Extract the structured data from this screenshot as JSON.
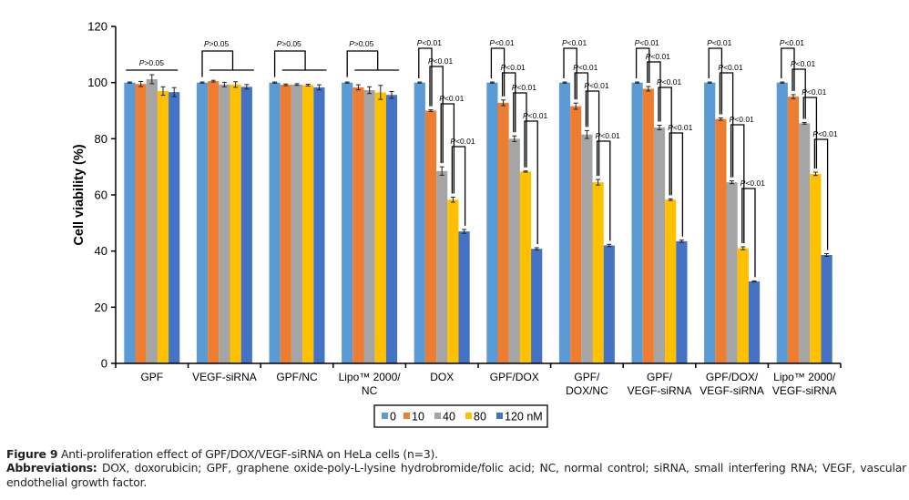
{
  "chart_data": {
    "type": "bar",
    "title": "",
    "xlabel": "",
    "ylabel": "Cell viability (%)",
    "ylim": [
      0,
      120
    ],
    "yticks": [
      0,
      20,
      40,
      60,
      80,
      100,
      120
    ],
    "grid": false,
    "legend_position": "bottom",
    "categories": [
      [
        "GPF"
      ],
      [
        "VEGF-siRNA"
      ],
      [
        "GPF/NC"
      ],
      [
        "Lipo™ 2000/",
        "NC"
      ],
      [
        "DOX"
      ],
      [
        "GPF/DOX"
      ],
      [
        "GPF/",
        "DOX/NC"
      ],
      [
        "GPF/",
        "VEGF-siRNA"
      ],
      [
        "GPF/DOX/",
        "VEGF-siRNA"
      ],
      [
        "Lipo™ 2000/",
        "VEGF-siRNA"
      ]
    ],
    "series": [
      {
        "name": "0",
        "color": "#5b9bd5",
        "values": [
          100,
          100,
          100,
          100,
          100,
          100,
          100,
          100,
          100,
          100
        ],
        "errors": [
          0.2,
          0.2,
          0.2,
          0.2,
          0.2,
          0.2,
          0.2,
          0.2,
          0.2,
          0.2
        ]
      },
      {
        "name": "10",
        "color": "#ed7d31",
        "values": [
          99.5,
          100.5,
          99.2,
          98.3,
          90,
          92.8,
          91.6,
          97.8,
          87,
          95
        ],
        "errors": [
          0.9,
          0.3,
          0.3,
          0.9,
          0.3,
          1.0,
          1.1,
          0.8,
          0.4,
          0.7
        ]
      },
      {
        "name": "40",
        "color": "#a5a5a5",
        "values": [
          101.2,
          99.3,
          99.3,
          97.3,
          68.5,
          80,
          81.5,
          84,
          64.5,
          85.5
        ],
        "errors": [
          1.6,
          0.8,
          0.3,
          1.2,
          1.5,
          1.0,
          1.4,
          0.8,
          0.5,
          0.3
        ]
      },
      {
        "name": "80",
        "color": "#ffc000",
        "values": [
          97,
          99.3,
          99.1,
          96.5,
          58.3,
          68.3,
          64.5,
          58.3,
          41,
          67.5
        ],
        "errors": [
          1.5,
          1.0,
          0.3,
          2.5,
          0.9,
          0.2,
          1.0,
          0.3,
          0.5,
          0.6
        ]
      },
      {
        "name": "120 nM",
        "color": "#4472c4",
        "values": [
          96.6,
          98.5,
          98.3,
          95.6,
          47,
          40.8,
          42,
          43.5,
          29.2,
          38.6
        ],
        "errors": [
          1.6,
          0.8,
          0.9,
          1.2,
          0.7,
          0.4,
          0.4,
          0.4,
          0.2,
          0.5
        ]
      }
    ],
    "annotations": {
      "ns_label": "P>0.05",
      "sig_label": "P<0.01",
      "ns_groups": [
        0,
        1,
        2,
        3
      ],
      "sig_groups": [
        4,
        5,
        6,
        7,
        8,
        9
      ]
    }
  },
  "caption": {
    "figure_label": "Figure 9",
    "figure_text": " Anti-proliferation effect of GPF/DOX/VEGF-siRNA on HeLa cells (n=3).",
    "abbrev_label": "Abbreviations:",
    "abbrev_text": " DOX, doxorubicin; GPF, graphene oxide-poly-L-lysine hydrobromide/folic acid; NC, normal control; siRNA, small interfering RNA; VEGF, vascular endothelial growth factor."
  }
}
